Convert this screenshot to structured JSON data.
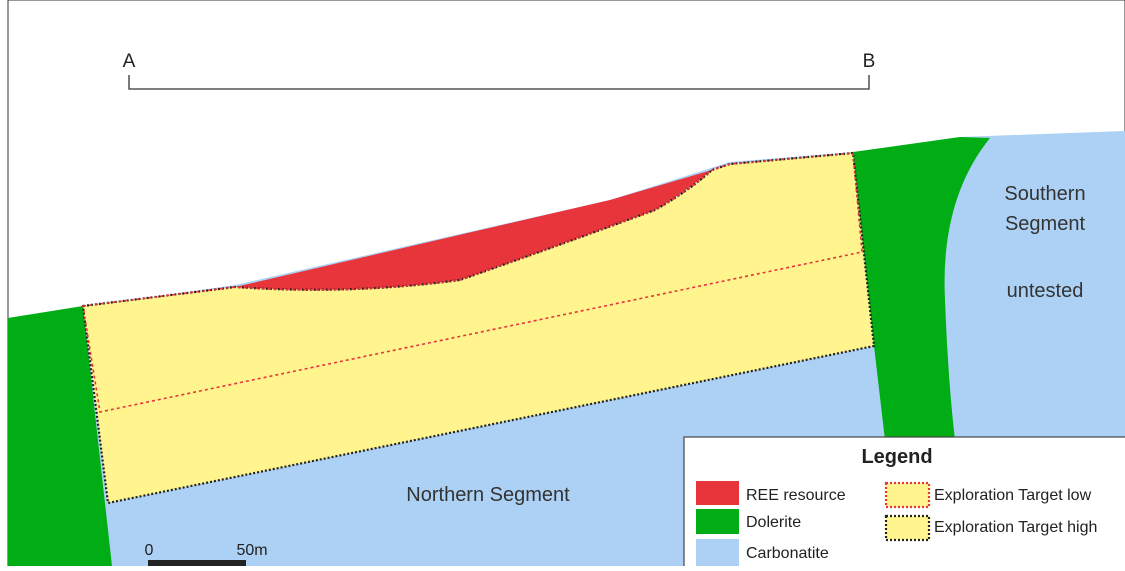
{
  "section_line": {
    "start_label": "A",
    "end_label": "B"
  },
  "units": {
    "northern": "Northern Segment",
    "southern_line1": "Southern",
    "southern_line2": "Segment",
    "untested": "untested"
  },
  "scale_bar": {
    "start_label": "0",
    "end_label": "50m"
  },
  "legend": {
    "title": "Legend",
    "items": [
      {
        "label": "REE resource",
        "color": "#e8353c"
      },
      {
        "label": "Dolerite",
        "color": "#00ad14"
      },
      {
        "label": "Carbonatite",
        "color": "#add1f5"
      },
      {
        "label": "Exploration Target low",
        "color": "#fff48e",
        "border": "#e8353c"
      },
      {
        "label": "Exploration Target high",
        "color": "#fff48e",
        "border": "#222222"
      }
    ]
  },
  "colors": {
    "carbonatite": "#add1f5",
    "dolerite": "#00ad14",
    "ree": "#e8353c",
    "target": "#fff48e",
    "outline": "#222222",
    "low_line": "#e8353c"
  }
}
